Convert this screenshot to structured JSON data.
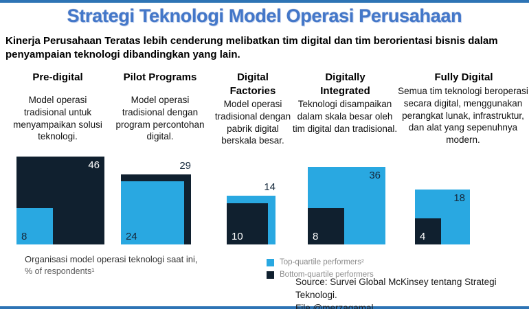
{
  "page": {
    "title": "Strategi Teknologi Model Operasi Perusahaan",
    "subtitle": "Kinerja Perusahaan Teratas lebih cenderung melibatkan tim digital dan tim berorientasi bisnis dalam penyampaian teknologi dibandingkan yang lain."
  },
  "columns": [
    {
      "header": "Pre-digital",
      "description": "Model operasi tradisional untuk menyampaikan solusi teknologi."
    },
    {
      "header": "Pilot Programs",
      "description": "Model operasi tradisional dengan program percontohan digital."
    },
    {
      "header": "Digital Factories",
      "description": "Model operasi tradisional dengan pabrik digital berskala besar."
    },
    {
      "header": "Digitally Integrated",
      "description": "Teknologi disampaikan dalam skala besar oleh tim digital dan tradisional."
    },
    {
      "header": "Fully Digital",
      "description": "Semua tim teknologi beroperasi secara digital, menggunakan perangkat lunak, infrastruktur, dan alat yang sepenuhnya modern."
    }
  ],
  "chart_data": {
    "type": "bar",
    "variant": "nested-proportional-squares",
    "title": "Organisasi model operasi teknologi saat ini, % of respondents",
    "categories": [
      "Pre-digital",
      "Pilot Programs",
      "Digital Factories",
      "Digitally Integrated",
      "Fully Digital"
    ],
    "series": [
      {
        "name": "Top-quartile performers²",
        "color": "#29a8e1",
        "values": [
          8,
          24,
          14,
          36,
          18
        ]
      },
      {
        "name": "Bottom-quartile performers",
        "color": "#10202f",
        "values": [
          46,
          29,
          10,
          8,
          4
        ]
      }
    ],
    "value_unit": "% of respondents",
    "legend_position": "bottom-right"
  },
  "footnote": {
    "line1": "Organisasi model operasi teknologi saat ini,",
    "line2": "% of respondents¹"
  },
  "legend": {
    "items": [
      {
        "label": "Top-quartile performers²",
        "color": "#29a8e1"
      },
      {
        "label": "Bottom-quartile performers",
        "color": "#10202f"
      }
    ]
  },
  "source": {
    "line1": "Source: Survei Global McKinsey tentang Strategi Teknologi.",
    "line2": "File @merzagamal"
  },
  "colors": {
    "accent_bar": "#2e74b5",
    "title_blue": "#4377c9",
    "top_quartile_blue": "#29a8e1",
    "bottom_quartile_navy": "#10202f"
  }
}
